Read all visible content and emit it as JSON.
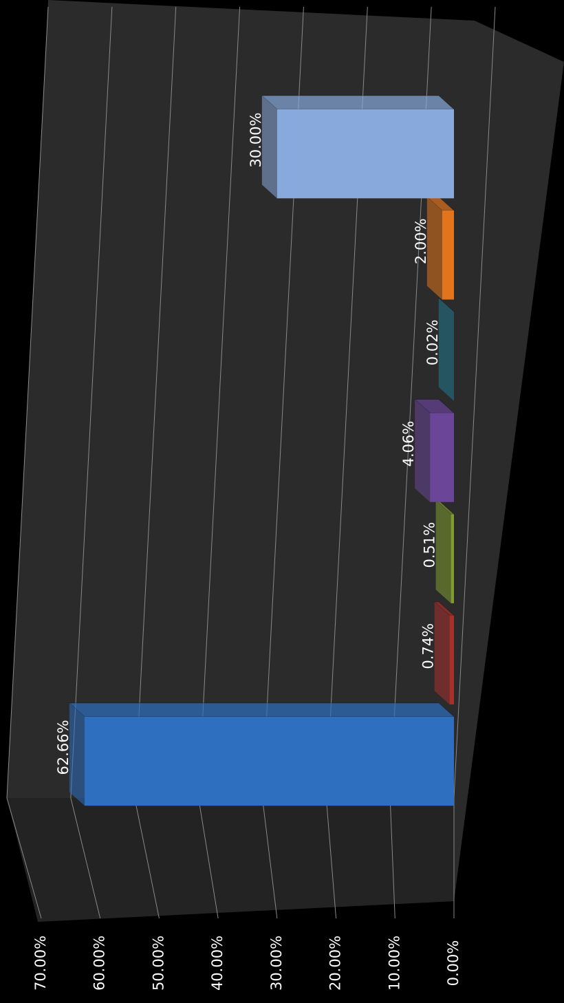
{
  "chart_data": {
    "type": "bar",
    "orientation": "horizontal",
    "categories": [
      null,
      null,
      null,
      null,
      null,
      null,
      null
    ],
    "values": [
      62.66,
      0.74,
      0.51,
      4.06,
      0.02,
      2.0,
      30.0
    ],
    "value_labels": [
      "62.66%",
      "0.74%",
      "0.51%",
      "4.06%",
      "0.02%",
      "2.00%",
      "30.00%"
    ],
    "colors": [
      "#2e6fc0",
      "#a8302c",
      "#7f9c32",
      "#6a4598",
      "#22798f",
      "#e1741c",
      "#88a9dc"
    ],
    "ylim": [
      0,
      70
    ],
    "yticks": [
      {
        "value": 0,
        "label": "0.00%"
      },
      {
        "value": 10,
        "label": "10.00%"
      },
      {
        "value": 20,
        "label": "20.00%"
      },
      {
        "value": 30,
        "label": "30.00%"
      },
      {
        "value": 40,
        "label": "40.00%"
      },
      {
        "value": 50,
        "label": "50.00%"
      },
      {
        "value": 60,
        "label": "60.00%"
      },
      {
        "value": 70,
        "label": "70.00%"
      }
    ],
    "grid": true
  }
}
